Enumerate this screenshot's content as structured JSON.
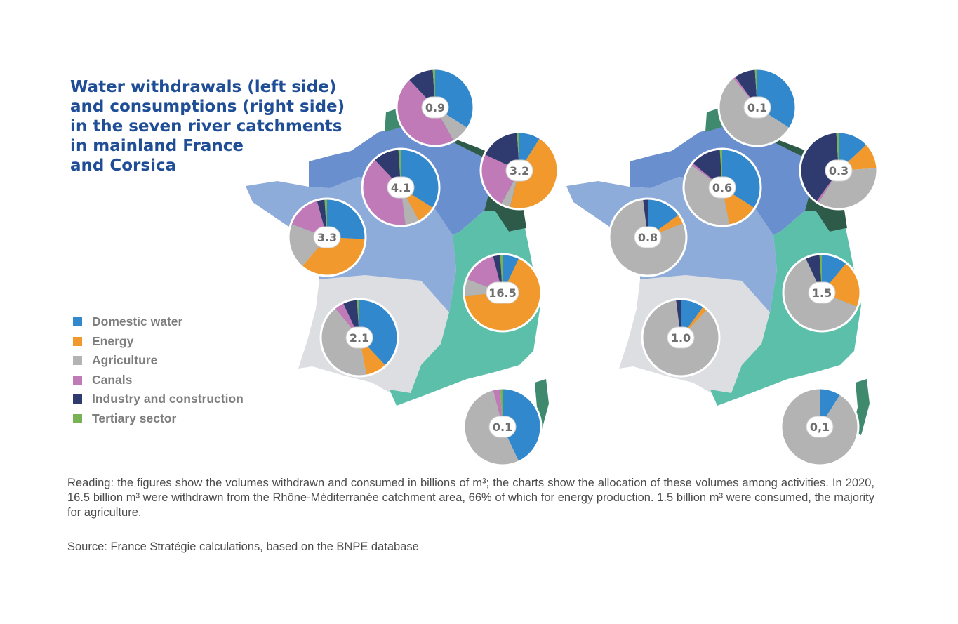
{
  "title": "Water withdrawals (left side)\nand consumptions (right side)\nin the seven river catchments\nin mainland France\nand Corsica",
  "colors": {
    "domestic": "#3188cc",
    "energy": "#f2992e",
    "agriculture": "#b3b3b3",
    "canals": "#c17ab8",
    "industry": "#2f3a6e",
    "tertiary": "#77b354",
    "region_north": "#6a8fcf",
    "region_artois": "#3f8a6e",
    "region_rhin": "#2e5a4a",
    "region_loire": "#8eacd9",
    "region_rhone": "#5bbfa9",
    "region_adour": "#dcdee2",
    "region_corsica": "#3f8a6e"
  },
  "legend": [
    {
      "label": "Domestic water",
      "color": "#3188cc"
    },
    {
      "label": "Energy",
      "color": "#f2992e"
    },
    {
      "label": "Agriculture",
      "color": "#b3b3b3"
    },
    {
      "label": "Canals",
      "color": "#c17ab8"
    },
    {
      "label": "Industry and construction",
      "color": "#2f3a6e"
    },
    {
      "label": "Tertiary sector",
      "color": "#77b354"
    }
  ],
  "chart_data": [
    {
      "type": "pie",
      "map": "left",
      "measure": "withdrawals",
      "unit": "billion m³",
      "categories": [
        "Domestic water",
        "Energy",
        "Agriculture",
        "Canals",
        "Industry and construction",
        "Tertiary sector"
      ],
      "catchments": [
        {
          "label": "0.9",
          "values": [
            34,
            0,
            8,
            46,
            11,
            1
          ]
        },
        {
          "label": "4.1",
          "values": [
            34,
            8,
            6,
            40,
            11,
            1
          ]
        },
        {
          "label": "3.2",
          "values": [
            9,
            45,
            4,
            24,
            17,
            1
          ]
        },
        {
          "label": "3.3",
          "values": [
            24,
            33,
            18,
            14,
            3,
            1
          ]
        },
        {
          "label": "16.5",
          "values": [
            7,
            66,
            7,
            15,
            3,
            1
          ]
        },
        {
          "label": "2.1",
          "values": [
            38,
            9,
            42,
            4,
            6,
            1
          ]
        },
        {
          "label": "0.1",
          "values": [
            43,
            0,
            53,
            3,
            0,
            1
          ]
        }
      ]
    },
    {
      "type": "pie",
      "map": "right",
      "measure": "consumptions",
      "unit": "billion m³",
      "categories": [
        "Domestic water",
        "Energy",
        "Agriculture",
        "Canals",
        "Industry and construction",
        "Tertiary sector"
      ],
      "catchments": [
        {
          "label": "0.1",
          "values": [
            34,
            0,
            55,
            1,
            9,
            1
          ]
        },
        {
          "label": "0.6",
          "values": [
            34,
            13,
            38,
            1,
            13,
            1
          ]
        },
        {
          "label": "0.3",
          "values": [
            13,
            11,
            35,
            1,
            39,
            1
          ]
        },
        {
          "label": "0.8",
          "values": [
            15,
            4,
            79,
            0,
            2,
            0
          ]
        },
        {
          "label": "1.5",
          "values": [
            11,
            20,
            62,
            0,
            6,
            1
          ]
        },
        {
          "label": "1.0",
          "values": [
            10,
            2,
            86,
            0,
            2,
            0
          ]
        },
        {
          "label": "0,1",
          "values": [
            9,
            0,
            91,
            0,
            0,
            0
          ]
        }
      ]
    }
  ],
  "reading": "Reading: the figures show the volumes withdrawn and consumed in billions of m³; the charts show the allocation of these volumes among activities. In 2020, 16.5 billion m³ were withdrawn from the Rhône-Méditerranée catchment area, 66% of which for energy production. 1.5 billion m³ were consumed, the majority for agriculture.",
  "source": "Source: France Stratégie calculations, based on the BNPE database"
}
